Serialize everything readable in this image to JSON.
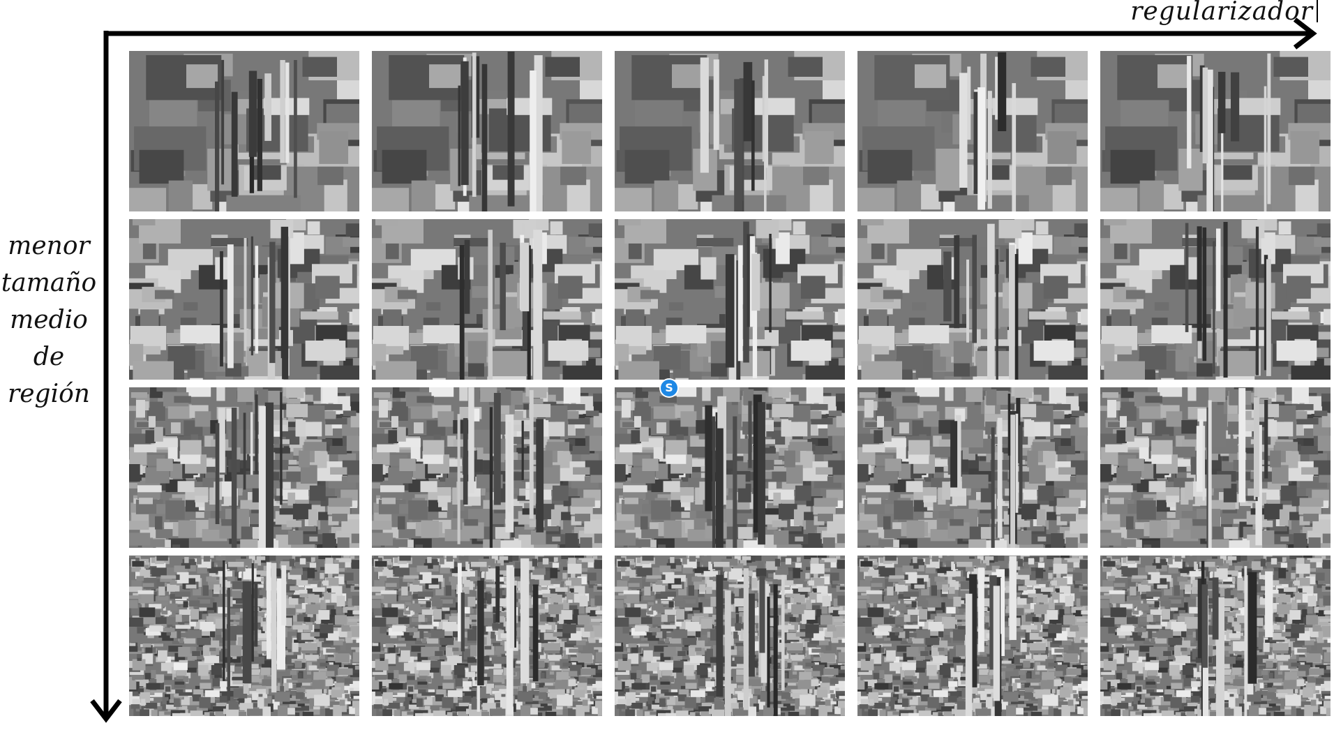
{
  "axes": {
    "x_label": "regularizador",
    "y_label_lines": [
      "menor",
      "tamaño",
      "medio",
      "de",
      "región"
    ]
  },
  "grid": {
    "rows": 4,
    "columns": 5,
    "cells_description": "segmentation results of the same photograph",
    "row_segment_density": [
      "coarse",
      "medium",
      "fine",
      "very-fine"
    ],
    "tone": "grayscale"
  },
  "watermark": {
    "icon": "s-badge-icon",
    "letter": "S",
    "color": "#1e88e5"
  }
}
